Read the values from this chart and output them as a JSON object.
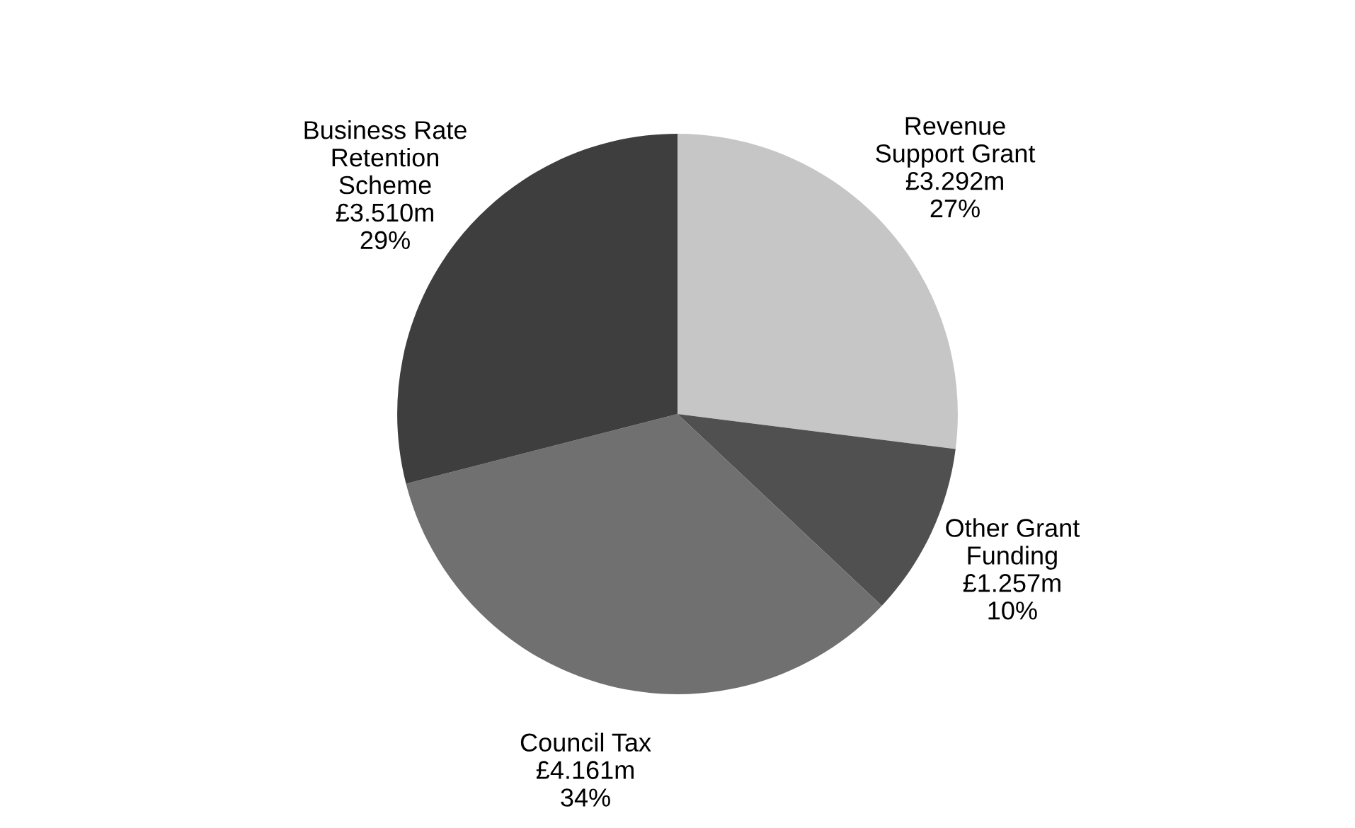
{
  "chart_data": {
    "type": "pie",
    "categories": [
      "Revenue\nSupport Grant",
      "Other Grant\nFunding",
      "Council Tax",
      "Business Rate\nRetention\nScheme"
    ],
    "values": [
      27,
      10,
      34,
      29
    ],
    "value_labels": [
      "£3.292m\n27%",
      "£1.257m\n10%",
      "£4.161m\n34%",
      "£3.510m\n29%"
    ],
    "colors": [
      "#c6c6c6",
      "#505050",
      "#707070",
      "#3e3e3e"
    ],
    "legend": false
  }
}
